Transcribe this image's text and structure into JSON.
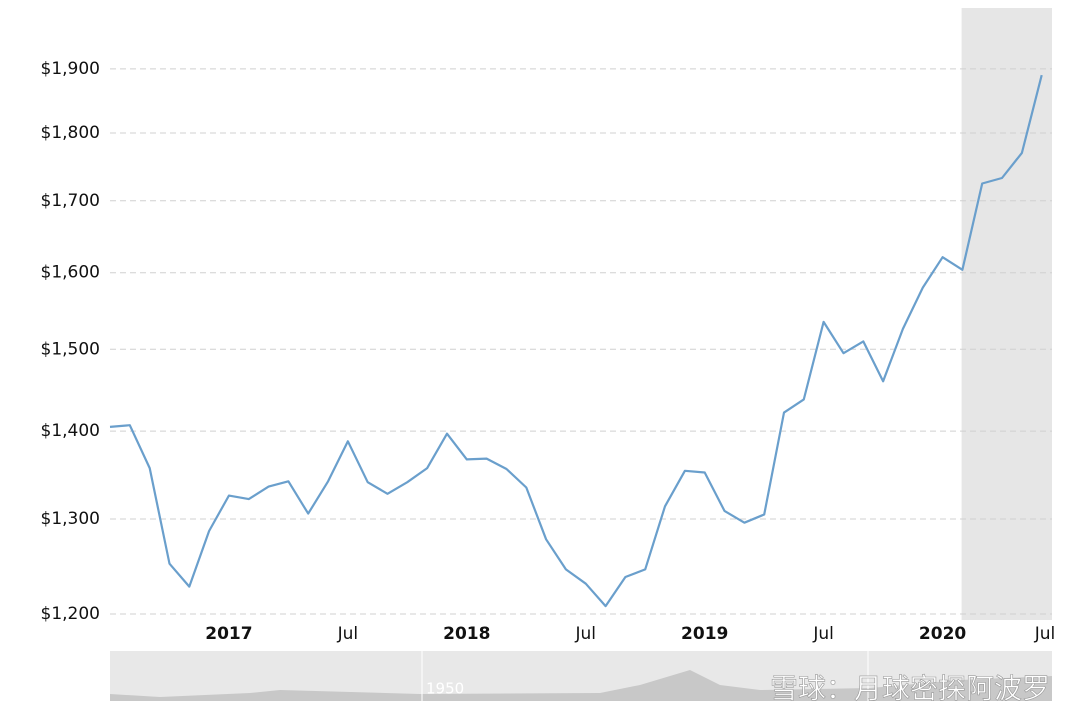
{
  "chart_data": {
    "type": "line",
    "log_scale": true,
    "grid": true,
    "x": [
      2016.5,
      2016.5833,
      2016.6667,
      2016.75,
      2016.8333,
      2016.9167,
      2017.0,
      2017.0833,
      2017.1667,
      2017.25,
      2017.3333,
      2017.4167,
      2017.5,
      2017.5833,
      2017.6667,
      2017.75,
      2017.8333,
      2017.9167,
      2018.0,
      2018.0833,
      2018.1667,
      2018.25,
      2018.3333,
      2018.4167,
      2018.5,
      2018.5833,
      2018.6667,
      2018.75,
      2018.8333,
      2018.9167,
      2019.0,
      2019.0833,
      2019.1667,
      2019.25,
      2019.3333,
      2019.4167,
      2019.5,
      2019.5833,
      2019.6667,
      2019.75,
      2019.8333,
      2019.9167,
      2020.0,
      2020.0833,
      2020.1667,
      2020.25,
      2020.3333,
      2020.4167
    ],
    "series": [
      {
        "color": "#6a9fcc",
        "values": [
          1405,
          1407,
          1357,
          1252,
          1228,
          1287,
          1326,
          1322,
          1336,
          1342,
          1306,
          1342,
          1388,
          1341,
          1328,
          1341,
          1357,
          1397,
          1367,
          1368,
          1356,
          1335,
          1278,
          1246,
          1231,
          1208,
          1238,
          1246,
          1314,
          1354,
          1352,
          1309,
          1296,
          1305,
          1422,
          1438,
          1535,
          1495,
          1510,
          1460,
          1526,
          1580,
          1621,
          1604,
          1725,
          1733,
          1770,
          1890
        ]
      }
    ],
    "xlim": [
      2016.5,
      2020.46
    ],
    "xticks": [
      2017,
      {
        "value": 2017.5,
        "label": "Jul"
      },
      2018,
      {
        "value": 2018.5,
        "label": "Jul"
      },
      2019,
      {
        "value": 2019.5,
        "label": "Jul"
      },
      2020,
      {
        "value": 2020.5,
        "label": "Jul"
      }
    ],
    "ylim": [
      1200,
      2000
    ],
    "yticks": [
      {
        "value": 1200,
        "label": "$1,200"
      },
      {
        "value": 1300,
        "label": "$1,300"
      },
      {
        "value": 1400,
        "label": "$1,400"
      },
      {
        "value": 1500,
        "label": "$1,500"
      },
      {
        "value": 1600,
        "label": "$1,600"
      },
      {
        "value": 1700,
        "label": "$1,700"
      },
      {
        "value": 1800,
        "label": "$1,800"
      },
      {
        "value": 1900,
        "label": "$1,900"
      }
    ],
    "shaded_xlim": [
      2020.08,
      2020.46
    ],
    "navigator_label": "1950",
    "watermark": "雪球：月球密探阿波罗"
  }
}
